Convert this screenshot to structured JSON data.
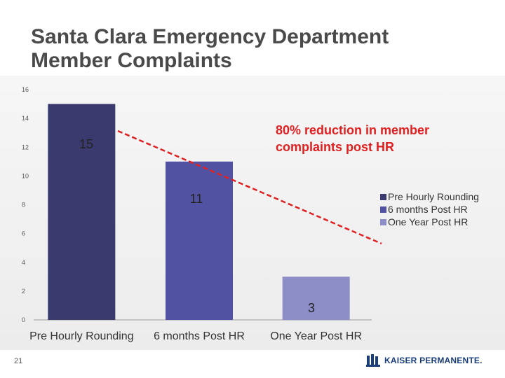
{
  "title": {
    "line1": "Santa Clara Emergency Department",
    "line2": "Member Complaints"
  },
  "page_number": "21",
  "logo": {
    "text": "KAISER PERMANENTE.",
    "icon": "kaiser-permanente-logo-icon",
    "color": "#1a3d7c"
  },
  "chart_data": {
    "type": "bar",
    "categories": [
      "Pre Hourly Rounding",
      "6 months Post HR",
      "One Year Post HR"
    ],
    "values": [
      15,
      11,
      3
    ],
    "data_labels": [
      "15",
      "11",
      "3"
    ],
    "colors": [
      "#3b3a6e",
      "#5252a3",
      "#8d8ec8"
    ],
    "ylim": [
      0,
      16
    ],
    "yticks": [
      0,
      2,
      4,
      6,
      8,
      10,
      12,
      14,
      16
    ],
    "grid": false,
    "legend": {
      "position": "right",
      "entries": [
        "Pre Hourly Rounding",
        "6 months Post HR",
        "One Year Post HR"
      ]
    },
    "annotation": {
      "text_line1": "80% reduction in member",
      "text_line2": "complaints post HR",
      "color": "#e02020",
      "trend_line": "dashed red line descending from first bar to legend"
    }
  }
}
